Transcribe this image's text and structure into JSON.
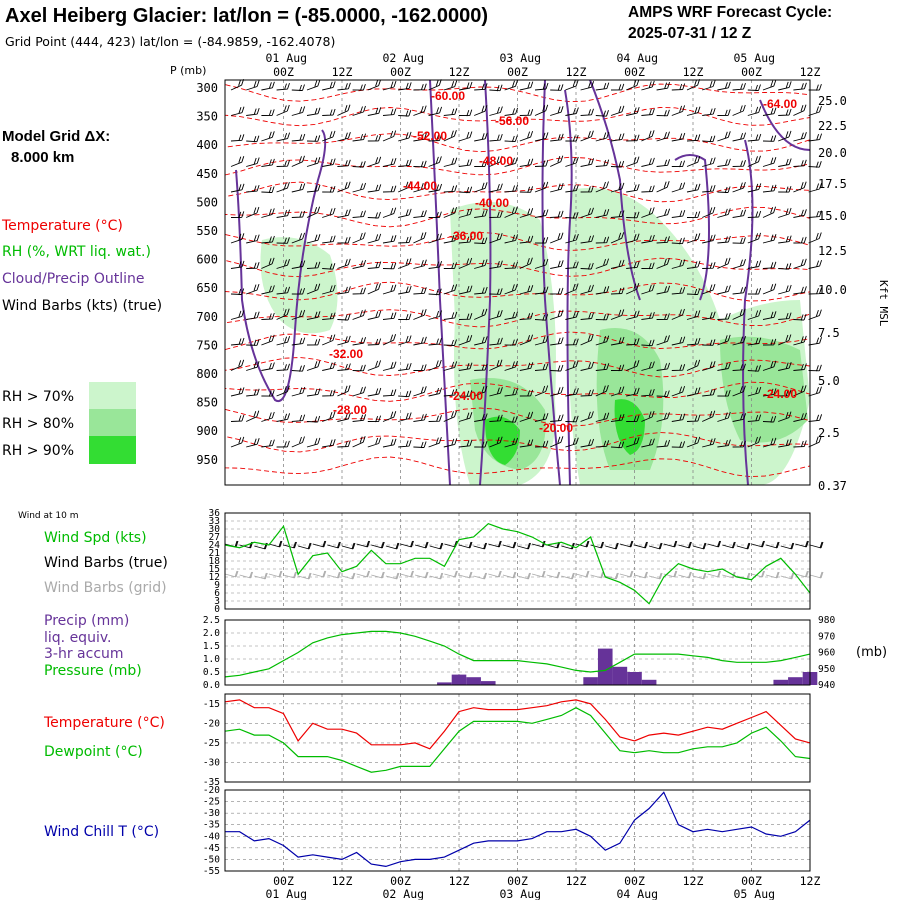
{
  "header": {
    "title": "Axel Heiberg Glacier:  lat/lon = (-85.0000, -162.0000)",
    "subtitle": "Grid Point (444, 423) lat/lon = (-84.9859, -162.4078)",
    "cycle_line1": "AMPS WRF Forecast Cycle:",
    "cycle_line2": "2025-07-31 / 12  Z"
  },
  "model_grid": {
    "line1": "Model Grid ΔX:",
    "line2": "8.000 km"
  },
  "legend_top": {
    "temperature": "Temperature (°C)",
    "rh": "RH (%, WRT liq. wat.)",
    "cloud": "Cloud/Precip Outline",
    "wind": "Wind Barbs (kts) (true)",
    "rh70": "RH > 70%",
    "rh80": "RH > 80%",
    "rh90": "RH > 90%"
  },
  "colors": {
    "temperature": "#ee0000",
    "rh70": "#ccf5cc",
    "rh80": "#99e699",
    "rh90": "#33dd33",
    "cloud": "#663399",
    "wind": "#000000",
    "wind_grid": "#aaaaaa",
    "wind_speed": "#00bb00",
    "precip": "#663399",
    "pressure": "#00bb00",
    "temp2m": "#ee0000",
    "dewpoint": "#00bb00",
    "windchill": "#0000aa"
  },
  "time_axis": {
    "top_hours": [
      "00Z",
      "12Z",
      "00Z",
      "12Z",
      "00Z",
      "12Z",
      "00Z",
      "12Z",
      "00Z",
      "12Z"
    ],
    "top_dates": [
      "01 Aug",
      "02 Aug",
      "03 Aug",
      "04 Aug",
      "05 Aug"
    ],
    "bottom_hours": [
      "00Z",
      "12Z",
      "00Z",
      "12Z",
      "00Z",
      "12Z",
      "00Z",
      "12Z",
      "00Z",
      "12Z"
    ],
    "bottom_dates": [
      "01 Aug",
      "02 Aug",
      "03 Aug",
      "04 Aug",
      "05 Aug"
    ]
  },
  "chart_data": [
    {
      "type": "contour",
      "ylabel": "P (mb)",
      "y2label": "Kft MSL",
      "pressure_ticks": [
        "300",
        "350",
        "400",
        "450",
        "500",
        "550",
        "600",
        "650",
        "700",
        "750",
        "800",
        "850",
        "900",
        "950"
      ],
      "height_ticks": [
        "25.0",
        "22.5",
        "20.0",
        "17.5",
        "15.0",
        "12.5",
        "10.0",
        "7.5",
        "5.0",
        "2.5",
        "0.37"
      ],
      "temperature_labels": [
        "-60.00",
        "-64.00",
        "-56.00",
        "-52.00",
        "-48.00",
        "-44.00",
        "-40.00",
        "-36.00",
        "-32.00",
        "-28.00",
        "-24.00",
        "-20.00",
        "-24.00"
      ]
    },
    {
      "type": "line",
      "title": "Wind at 10 m",
      "series_labels": [
        "Wind Spd (kts)",
        "Wind Barbs (true)",
        "Wind Barbs (grid)"
      ],
      "y_ticks": [
        "36",
        "33",
        "30",
        "27",
        "24",
        "21",
        "18",
        "15",
        "12",
        "9",
        "6",
        "3",
        "0"
      ],
      "ylim": [
        0,
        36
      ],
      "x_hours": [
        -12,
        -9,
        -6,
        -3,
        0,
        3,
        6,
        9,
        12,
        15,
        18,
        21,
        24,
        27,
        30,
        33,
        36,
        39,
        42,
        45,
        48,
        51,
        54,
        57,
        60,
        63,
        66,
        69,
        72,
        75,
        78,
        81,
        84,
        87,
        90,
        93,
        96,
        99,
        102,
        105,
        108
      ],
      "wind_speed": [
        24,
        23,
        25,
        24,
        31,
        13,
        20,
        21,
        14,
        16,
        22,
        17,
        17,
        19,
        19,
        16,
        26,
        27,
        32,
        30,
        29,
        27,
        24,
        25,
        23,
        27,
        12,
        10,
        7,
        2,
        12,
        17,
        15,
        14,
        15,
        12,
        11,
        16,
        19,
        13,
        6
      ]
    },
    {
      "type": "bar",
      "series_labels": [
        "Precip (mm)",
        "liq. equiv.",
        "3-hr accum",
        "Pressure (mb)"
      ],
      "y_ticks": [
        "2.5",
        "2.0",
        "1.5",
        "1.0",
        "0.5",
        "0.0"
      ],
      "ylim": [
        0,
        2.5
      ],
      "y2_ticks": [
        "980",
        "970",
        "960",
        "950",
        "940"
      ],
      "y2lim": [
        940,
        980
      ],
      "y2label": "(mb)",
      "x_hours": [
        -12,
        -9,
        -6,
        -3,
        0,
        3,
        6,
        9,
        12,
        15,
        18,
        21,
        24,
        27,
        30,
        33,
        36,
        39,
        42,
        45,
        48,
        51,
        54,
        57,
        60,
        63,
        66,
        69,
        72,
        75,
        78,
        81,
        84,
        87,
        90,
        93,
        96,
        99,
        102,
        105,
        108
      ],
      "precip": [
        0,
        0,
        0,
        0,
        0,
        0,
        0,
        0,
        0,
        0,
        0,
        0,
        0,
        0,
        0,
        0.1,
        0.4,
        0.3,
        0.15,
        0,
        0,
        0,
        0,
        0,
        0,
        0.3,
        1.4,
        0.7,
        0.5,
        0.2,
        0,
        0,
        0,
        0,
        0,
        0,
        0,
        0,
        0.2,
        0.3,
        0.5
      ],
      "pressure": [
        945,
        946,
        948,
        950,
        955,
        960,
        966,
        969,
        971,
        972,
        973,
        973,
        972,
        970,
        967,
        964,
        959,
        955,
        955,
        955,
        955,
        954,
        953,
        951,
        949,
        948,
        949,
        954,
        959,
        959,
        959,
        959,
        958,
        957,
        955,
        954,
        954,
        954,
        955,
        957,
        959
      ]
    },
    {
      "type": "line",
      "series_labels": [
        "Temperature (°C)",
        "Dewpoint (°C)"
      ],
      "y_ticks": [
        "-15",
        "-20",
        "-25",
        "-30",
        "-35"
      ],
      "ylim": [
        -35,
        -12.5
      ],
      "x_hours": [
        -12,
        -9,
        -6,
        -3,
        0,
        3,
        6,
        9,
        12,
        15,
        18,
        21,
        24,
        27,
        30,
        33,
        36,
        39,
        42,
        45,
        48,
        51,
        54,
        57,
        60,
        63,
        66,
        69,
        72,
        75,
        78,
        81,
        84,
        87,
        90,
        93,
        96,
        99,
        102,
        105,
        108
      ],
      "temperature": [
        -14.5,
        -14,
        -16,
        -16,
        -17.5,
        -24.5,
        -20,
        -21.5,
        -21.5,
        -22.5,
        -25.5,
        -25.5,
        -25.5,
        -25,
        -26.5,
        -22,
        -17,
        -16,
        -16.5,
        -16.5,
        -16.5,
        -16,
        -15.5,
        -14.5,
        -14,
        -15,
        -19,
        -23.5,
        -24.5,
        -23,
        -22.5,
        -23,
        -22,
        -21,
        -21.5,
        -20,
        -18.5,
        -17,
        -20.5,
        -24,
        -25
      ],
      "dewpoint": [
        -22,
        -21.5,
        -23,
        -23,
        -25,
        -28.5,
        -28.5,
        -28.5,
        -29.5,
        -31,
        -32.5,
        -32,
        -31,
        -31,
        -31,
        -26.5,
        -22,
        -19.5,
        -19.5,
        -19.5,
        -19.5,
        -20,
        -19,
        -18,
        -16,
        -18,
        -22.5,
        -27,
        -27.5,
        -27,
        -27.5,
        -27.5,
        -26.5,
        -26,
        -26,
        -25,
        -22.5,
        -21,
        -24.5,
        -28.5,
        -29
      ]
    },
    {
      "type": "line",
      "series_labels": [
        "Wind Chill T (°C)"
      ],
      "y_ticks": [
        "-20",
        "-25",
        "-30",
        "-35",
        "-40",
        "-45",
        "-50",
        "-55"
      ],
      "ylim": [
        -55,
        -20
      ],
      "x_hours": [
        -12,
        -9,
        -6,
        -3,
        0,
        3,
        6,
        9,
        12,
        15,
        18,
        21,
        24,
        27,
        30,
        33,
        36,
        39,
        42,
        45,
        48,
        51,
        54,
        57,
        60,
        63,
        66,
        69,
        72,
        75,
        78,
        81,
        84,
        87,
        90,
        93,
        96,
        99,
        102,
        105,
        108
      ],
      "wind_chill": [
        -38,
        -38,
        -42,
        -41,
        -44,
        -49,
        -48,
        -49,
        -50,
        -47,
        -52,
        -53,
        -51,
        -50,
        -50,
        -49,
        -46,
        -43,
        -42,
        -42,
        -42,
        -41,
        -38,
        -38,
        -37,
        -40,
        -46,
        -43,
        -33,
        -28,
        -21,
        -35,
        -38,
        -37,
        -38,
        -37,
        -36,
        -39,
        -40,
        -38,
        -33
      ]
    }
  ]
}
